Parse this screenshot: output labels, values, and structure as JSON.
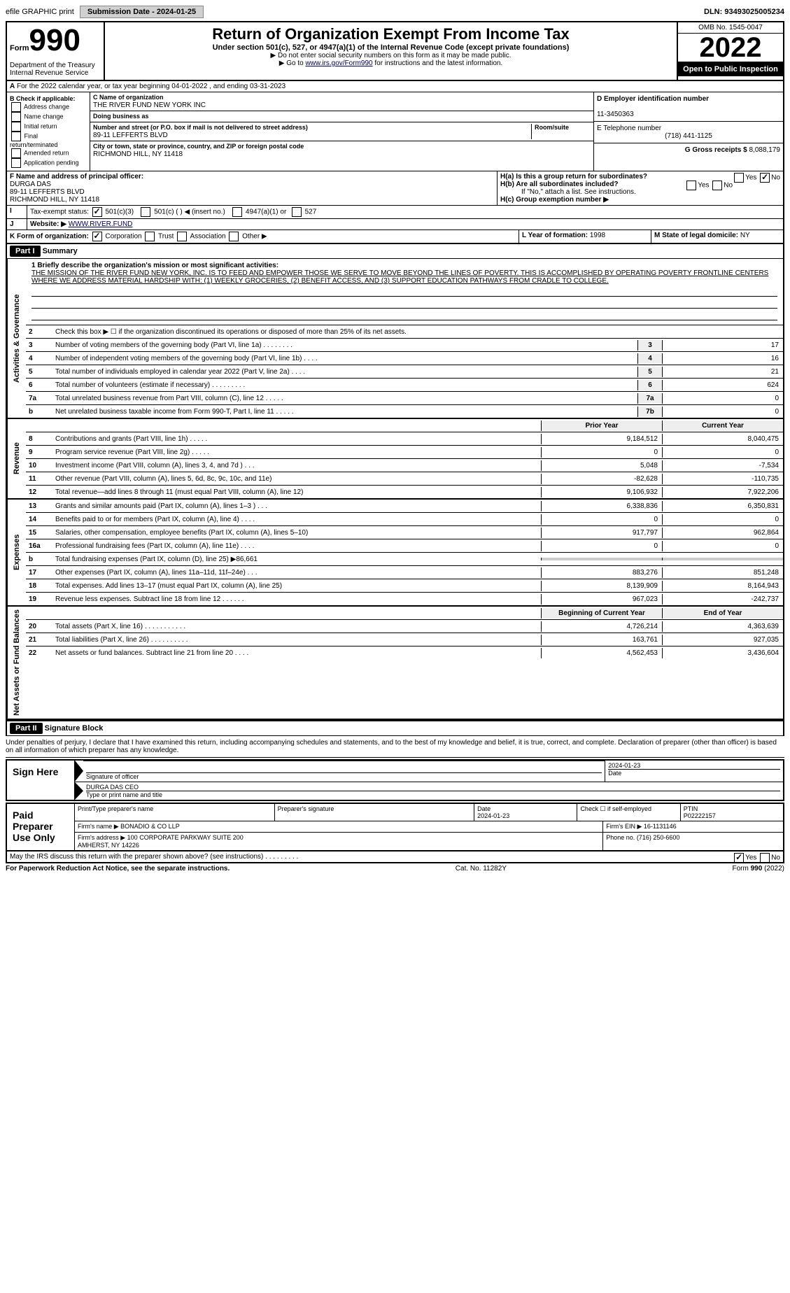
{
  "topbar": {
    "efile": "efile GRAPHIC print",
    "submission_label": "Submission Date - 2024-01-25",
    "dln": "DLN: 93493025005234"
  },
  "header": {
    "form_word": "Form",
    "form_num": "990",
    "title": "Return of Organization Exempt From Income Tax",
    "sub1": "Under section 501(c), 527, or 4947(a)(1) of the Internal Revenue Code (except private foundations)",
    "sub2": "▶ Do not enter social security numbers on this form as it may be made public.",
    "sub3_pre": "▶ Go to ",
    "sub3_link": "www.irs.gov/Form990",
    "sub3_post": " for instructions and the latest information.",
    "dept": "Department of the Treasury\nInternal Revenue Service",
    "omb": "OMB No. 1545-0047",
    "year": "2022",
    "open": "Open to Public Inspection"
  },
  "rowA": "For the 2022 calendar year, or tax year beginning 04-01-2022    , and ending 03-31-2023",
  "boxB": {
    "heading": "B Check if applicable:",
    "items": [
      "Address change",
      "Name change",
      "Initial return",
      "Final return/terminated",
      "Amended return",
      "Application pending"
    ]
  },
  "boxC": {
    "name_label": "C Name of organization",
    "name": "THE RIVER FUND NEW YORK INC",
    "dba_label": "Doing business as",
    "dba": "",
    "street_label": "Number and street (or P.O. box if mail is not delivered to street address)",
    "room_label": "Room/suite",
    "street": "89-11 LEFFERTS BLVD",
    "city_label": "City or town, state or province, country, and ZIP or foreign postal code",
    "city": "RICHMOND HILL, NY  11418"
  },
  "boxD": {
    "ein_label": "D Employer identification number",
    "ein": "11-3450363",
    "phone_label": "E Telephone number",
    "phone": "(718) 441-1125",
    "gross_label": "G Gross receipts $",
    "gross": "8,088,179"
  },
  "boxF": {
    "label": "F  Name and address of principal officer:",
    "name": "DURGA DAS",
    "street": "89-11 LEFFERTS BLVD",
    "city": "RICHMOND HILL, NY  11418"
  },
  "boxH": {
    "a": "H(a)  Is this a group return for subordinates?",
    "a_yes": "Yes",
    "a_no": "No",
    "b": "H(b)  Are all subordinates included?",
    "b_yes": "Yes",
    "b_no": "No",
    "b_note": "If \"No,\" attach a list. See instructions.",
    "c": "H(c)  Group exemption number ▶"
  },
  "rowI": {
    "label": "Tax-exempt status:",
    "opt1": "501(c)(3)",
    "opt2": "501(c) (   ) ◀ (insert no.)",
    "opt3": "4947(a)(1) or",
    "opt4": "527"
  },
  "rowJ": {
    "label": "Website: ▶",
    "value": "WWW.RIVER.FUND"
  },
  "rowK": {
    "label": "K Form of organization:",
    "opts": [
      "Corporation",
      "Trust",
      "Association",
      "Other ▶"
    ],
    "L_label": "L Year of formation:",
    "L_val": "1998",
    "M_label": "M State of legal domicile:",
    "M_val": "NY"
  },
  "part1": {
    "label": "Part I",
    "title": "Summary",
    "mission_label": "1  Briefly describe the organization's mission or most significant activities:",
    "mission": "THE MISSION OF THE RIVER FUND NEW YORK, INC. IS TO FEED AND EMPOWER THOSE WE SERVE TO MOVE BEYOND THE LINES OF POVERTY. THIS IS ACCOMPLISHED BY OPERATING POVERTY FRONTLINE CENTERS WHERE WE ADDRESS MATERIAL HARDSHIP WITH: (1) WEEKLY GROCERIES, (2) BENEFIT ACCESS, AND (3) SUPPORT EDUCATION PATHWAYS FROM CRADLE TO COLLEGE.",
    "line2": "Check this box ▶ ☐  if the organization discontinued its operations or disposed of more than 25% of its net assets."
  },
  "gov_lines": [
    {
      "num": "3",
      "desc": "Number of voting members of the governing body (Part VI, line 1a)   .    .    .    .    .    .    .    .",
      "box": "3",
      "val": "17"
    },
    {
      "num": "4",
      "desc": "Number of independent voting members of the governing body (Part VI, line 1b)   .    .    .    .",
      "box": "4",
      "val": "16"
    },
    {
      "num": "5",
      "desc": "Total number of individuals employed in calendar year 2022 (Part V, line 2a)   .    .    .    .",
      "box": "5",
      "val": "21"
    },
    {
      "num": "6",
      "desc": "Total number of volunteers (estimate if necessary)   .    .    .    .    .    .    .    .    .",
      "box": "6",
      "val": "624"
    },
    {
      "num": "7a",
      "desc": "Total unrelated business revenue from Part VIII, column (C), line 12   .    .    .    .    .",
      "box": "7a",
      "val": "0"
    },
    {
      "num": "b",
      "desc": "Net unrelated business taxable income from Form 990-T, Part I, line 11   .    .    .    .    .",
      "box": "7b",
      "val": "0"
    }
  ],
  "two_col_header": {
    "prior": "Prior Year",
    "current": "Current Year"
  },
  "revenue_lines": [
    {
      "num": "8",
      "desc": "Contributions and grants (Part VIII, line 1h)   .    .    .    .    .",
      "v1": "9,184,512",
      "v2": "8,040,475"
    },
    {
      "num": "9",
      "desc": "Program service revenue (Part VIII, line 2g)   .    .    .    .    .",
      "v1": "0",
      "v2": "0"
    },
    {
      "num": "10",
      "desc": "Investment income (Part VIII, column (A), lines 3, 4, and 7d )   .    .    .",
      "v1": "5,048",
      "v2": "-7,534"
    },
    {
      "num": "11",
      "desc": "Other revenue (Part VIII, column (A), lines 5, 6d, 8c, 9c, 10c, and 11e)",
      "v1": "-82,628",
      "v2": "-110,735"
    },
    {
      "num": "12",
      "desc": "Total revenue—add lines 8 through 11 (must equal Part VIII, column (A), line 12)",
      "v1": "9,106,932",
      "v2": "7,922,206"
    }
  ],
  "expense_lines": [
    {
      "num": "13",
      "desc": "Grants and similar amounts paid (Part IX, column (A), lines 1–3 )   .    .    .",
      "v1": "6,338,836",
      "v2": "6,350,831"
    },
    {
      "num": "14",
      "desc": "Benefits paid to or for members (Part IX, column (A), line 4)   .    .    .    .",
      "v1": "0",
      "v2": "0"
    },
    {
      "num": "15",
      "desc": "Salaries, other compensation, employee benefits (Part IX, column (A), lines 5–10)",
      "v1": "917,797",
      "v2": "962,864"
    },
    {
      "num": "16a",
      "desc": "Professional fundraising fees (Part IX, column (A), line 11e)   .    .    .    .",
      "v1": "0",
      "v2": "0"
    },
    {
      "num": "b",
      "desc": "Total fundraising expenses (Part IX, column (D), line 25) ▶86,661",
      "gray": true
    },
    {
      "num": "17",
      "desc": "Other expenses (Part IX, column (A), lines 11a–11d, 11f–24e)   .    .    .",
      "v1": "883,276",
      "v2": "851,248"
    },
    {
      "num": "18",
      "desc": "Total expenses. Add lines 13–17 (must equal Part IX, column (A), line 25)",
      "v1": "8,139,909",
      "v2": "8,164,943"
    },
    {
      "num": "19",
      "desc": "Revenue less expenses. Subtract line 18 from line 12   .    .    .    .    .    .",
      "v1": "967,023",
      "v2": "-242,737"
    }
  ],
  "net_header": {
    "prior": "Beginning of Current Year",
    "current": "End of Year"
  },
  "net_lines": [
    {
      "num": "20",
      "desc": "Total assets (Part X, line 16)   .    .    .    .    .    .    .    .    .    .    .",
      "v1": "4,726,214",
      "v2": "4,363,639"
    },
    {
      "num": "21",
      "desc": "Total liabilities (Part X, line 26)   .    .    .    .    .    .    .    .    .    .",
      "v1": "163,761",
      "v2": "927,035"
    },
    {
      "num": "22",
      "desc": "Net assets or fund balances. Subtract line 21 from line 20   .    .    .    .",
      "v1": "4,562,453",
      "v2": "3,436,604"
    }
  ],
  "part2": {
    "label": "Part II",
    "title": "Signature Block"
  },
  "penalties": "Under penalties of perjury, I declare that I have examined this return, including accompanying schedules and statements, and to the best of my knowledge and belief, it is true, correct, and complete. Declaration of preparer (other than officer) is based on all information of which preparer has any knowledge.",
  "sign": {
    "label": "Sign Here",
    "sig_officer": "Signature of officer",
    "date": "2024-01-23",
    "date_label": "Date",
    "name": "DURGA DAS CEO",
    "type_label": "Type or print name and title"
  },
  "preparer": {
    "label": "Paid Preparer Use Only",
    "h1": "Print/Type preparer's name",
    "h2": "Preparer's signature",
    "h3": "Date",
    "h3v": "2024-01-23",
    "h4": "Check ☐ if self-employed",
    "h5": "PTIN",
    "h5v": "P02222157",
    "firm_name_label": "Firm's name    ▶",
    "firm_name": "BONADIO & CO LLP",
    "firm_ein_label": "Firm's EIN ▶",
    "firm_ein": "16-1131146",
    "firm_addr_label": "Firm's address ▶",
    "firm_addr": "100 CORPORATE PARKWAY SUITE 200\nAMHERST, NY  14226",
    "phone_label": "Phone no.",
    "phone": "(716) 250-6600"
  },
  "discuss": "May the IRS discuss this return with the preparer shown above? (see instructions)   .    .    .    .    .    .    .    .    .",
  "discuss_yes": "Yes",
  "discuss_no": "No",
  "footer": {
    "left": "For Paperwork Reduction Act Notice, see the separate instructions.",
    "mid": "Cat. No. 11282Y",
    "right": "Form 990 (2022)"
  },
  "side_labels": {
    "gov": "Activities & Governance",
    "rev": "Revenue",
    "exp": "Expenses",
    "net": "Net Assets or Fund Balances"
  }
}
